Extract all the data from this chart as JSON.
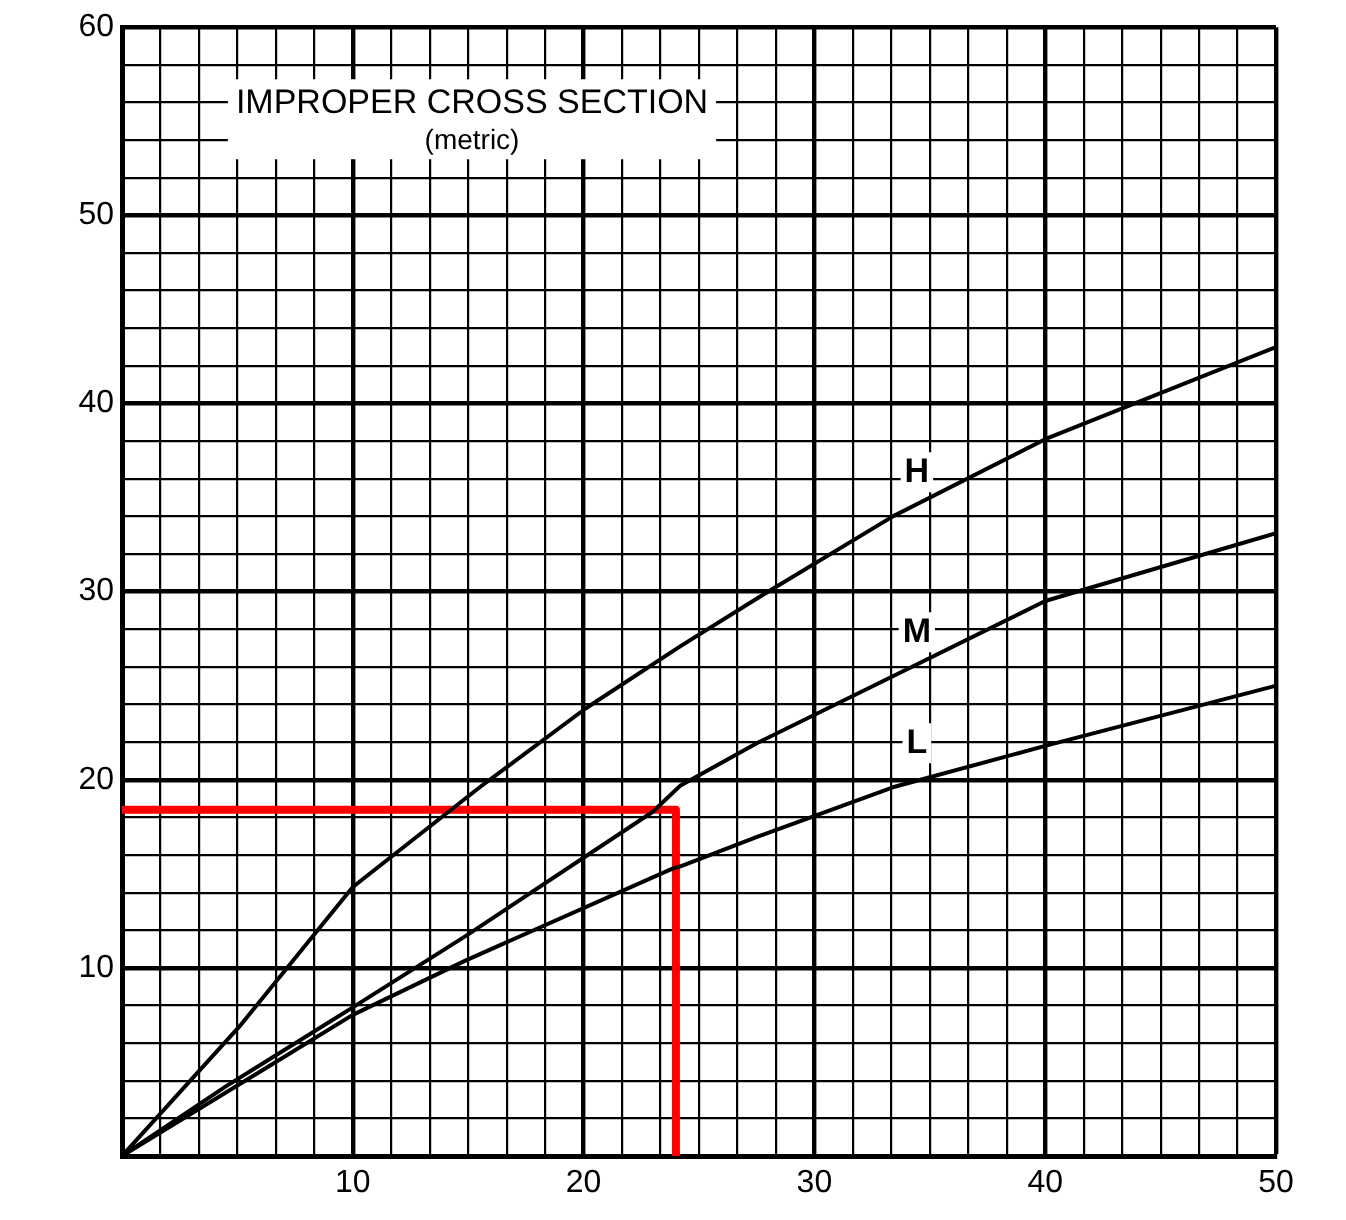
{
  "chart_data": {
    "type": "line",
    "title": "IMPROPER CROSS SECTION",
    "subtitle": "(metric)",
    "xlim": [
      0,
      50
    ],
    "xticks": [
      {
        "value": 1.67,
        "label": null
      },
      {
        "value": 3.33,
        "label": null
      },
      {
        "value": 5,
        "label": null
      },
      {
        "value": 6.67,
        "label": null
      },
      {
        "value": 8.33,
        "label": null
      },
      10,
      {
        "value": 11.67,
        "label": null
      },
      {
        "value": 13.33,
        "label": null
      },
      {
        "value": 15,
        "label": null
      },
      {
        "value": 16.67,
        "label": null
      },
      {
        "value": 18.33,
        "label": null
      },
      20,
      {
        "value": 21.67,
        "label": null
      },
      {
        "value": 23.33,
        "label": null
      },
      {
        "value": 25,
        "label": null
      },
      {
        "value": 26.67,
        "label": null
      },
      {
        "value": 28.33,
        "label": null
      },
      30,
      {
        "value": 31.67,
        "label": null
      },
      {
        "value": 33.33,
        "label": null
      },
      {
        "value": 35,
        "label": null
      },
      {
        "value": 36.67,
        "label": null
      },
      {
        "value": 38.33,
        "label": null
      },
      40,
      {
        "value": 41.67,
        "label": null
      },
      {
        "value": 43.33,
        "label": null
      },
      {
        "value": 45,
        "label": null
      },
      {
        "value": 46.67,
        "label": null
      },
      {
        "value": 48.33,
        "label": null
      },
      50
    ],
    "ylim": [
      0,
      60
    ],
    "yticks": [
      {
        "value": 2,
        "label": null
      },
      {
        "value": 4,
        "label": null
      },
      {
        "value": 6,
        "label": null
      },
      {
        "value": 8,
        "label": null
      },
      10,
      {
        "value": 12,
        "label": null
      },
      {
        "value": 14,
        "label": null
      },
      {
        "value": 16,
        "label": null
      },
      {
        "value": 18,
        "label": null
      },
      20,
      {
        "value": 22,
        "label": null
      },
      {
        "value": 24,
        "label": null
      },
      {
        "value": 26,
        "label": null
      },
      {
        "value": 28,
        "label": null
      },
      30,
      {
        "value": 32,
        "label": null
      },
      {
        "value": 34,
        "label": null
      },
      {
        "value": 36,
        "label": null
      },
      {
        "value": 38,
        "label": null
      },
      40,
      {
        "value": 42,
        "label": null
      },
      {
        "value": 44,
        "label": null
      },
      {
        "value": 46,
        "label": null
      },
      {
        "value": 48,
        "label": null
      },
      50,
      {
        "value": 52,
        "label": null
      },
      {
        "value": 54,
        "label": null
      },
      {
        "value": 56,
        "label": null
      },
      {
        "value": 58,
        "label": null
      },
      60
    ],
    "grid": true,
    "legend": false,
    "marker": "none",
    "line_style": "solid",
    "series": [
      {
        "name": "H",
        "color": "#000000",
        "x": [
          0,
          5.1,
          10,
          15.5,
          20.1,
          24.2,
          27.6,
          33.4,
          40,
          50
        ],
        "values": [
          0,
          6.9,
          14.3,
          19.6,
          23.8,
          27.1,
          29.7,
          34,
          38.1,
          43
        ]
      },
      {
        "name": "M",
        "color": "#000000",
        "x": [
          0,
          4.5,
          10,
          14.9,
          23,
          24.2,
          27.6,
          33.4,
          40,
          50
        ],
        "values": [
          0,
          3.7,
          7.9,
          11.7,
          18.3,
          19.7,
          22,
          25.5,
          29.5,
          33.1
        ]
      },
      {
        "name": "L",
        "color": "#000000",
        "x": [
          0,
          10,
          14.9,
          23.9,
          24.2,
          27.6,
          33.4,
          40,
          50
        ],
        "values": [
          0,
          7.5,
          10.4,
          15.3,
          15.4,
          17,
          19.6,
          21.8,
          25
        ]
      },
      {
        "color": "#ff0000",
        "x": [
          0,
          24,
          24
        ],
        "values": [
          18.4,
          18.4,
          0
        ]
      }
    ]
  }
}
